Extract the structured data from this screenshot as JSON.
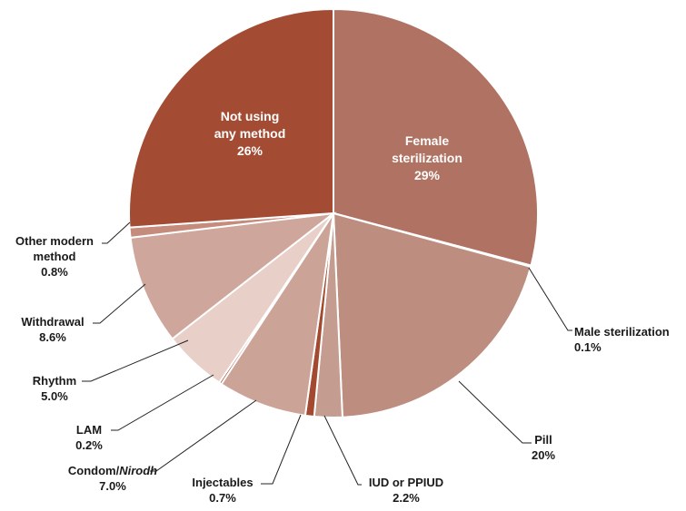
{
  "chart_data": {
    "type": "pie",
    "title": "",
    "slices": [
      {
        "name": "Female sterilization",
        "display": "29%",
        "value": 29.0,
        "color": "#b07262",
        "label_lines": [
          "Female",
          "sterilization",
          "29%"
        ]
      },
      {
        "name": "Male sterilization",
        "display": "0.1%",
        "value": 0.1,
        "color": "#9e4a35",
        "label_lines": [
          "Male sterilization",
          "0.1%"
        ]
      },
      {
        "name": "Pill",
        "display": "20%",
        "value": 20.0,
        "color": "#bd8e80",
        "label_lines": [
          "Pill",
          "20%"
        ]
      },
      {
        "name": "IUD or PPIUD",
        "display": "2.2%",
        "value": 2.2,
        "color": "#c49c90",
        "label_lines": [
          "IUD or PPIUD",
          "2.2%"
        ]
      },
      {
        "name": "Injectables",
        "display": "0.7%",
        "value": 0.7,
        "color": "#a3492f",
        "label_lines": [
          "Injectables",
          "0.7%"
        ]
      },
      {
        "name": "Condom/Nirodh",
        "display": "7.0%",
        "value": 7.0,
        "color": "#cba397",
        "label_lines": [
          "Condom/Nirodh",
          "7.0%"
        ]
      },
      {
        "name": "LAM",
        "display": "0.2%",
        "value": 0.2,
        "color": "#a3492f",
        "label_lines": [
          "LAM",
          "0.2%"
        ]
      },
      {
        "name": "Rhythm",
        "display": "5.0%",
        "value": 5.0,
        "color": "#e8d0c9",
        "label_lines": [
          "Rhythm",
          "5.0%"
        ]
      },
      {
        "name": "Withdrawal",
        "display": "8.6%",
        "value": 8.6,
        "color": "#cea69b",
        "label_lines": [
          "Withdrawal",
          "8.6%"
        ]
      },
      {
        "name": "Other modern method",
        "display": "0.8%",
        "value": 0.8,
        "color": "#c58b7c",
        "label_lines": [
          "Other modern",
          "method",
          "0.8%"
        ]
      },
      {
        "name": "Not using any method",
        "display": "26%",
        "value": 26.0,
        "color": "#a34c33",
        "label_lines": [
          "Not using",
          "any method",
          "26%"
        ]
      }
    ]
  }
}
